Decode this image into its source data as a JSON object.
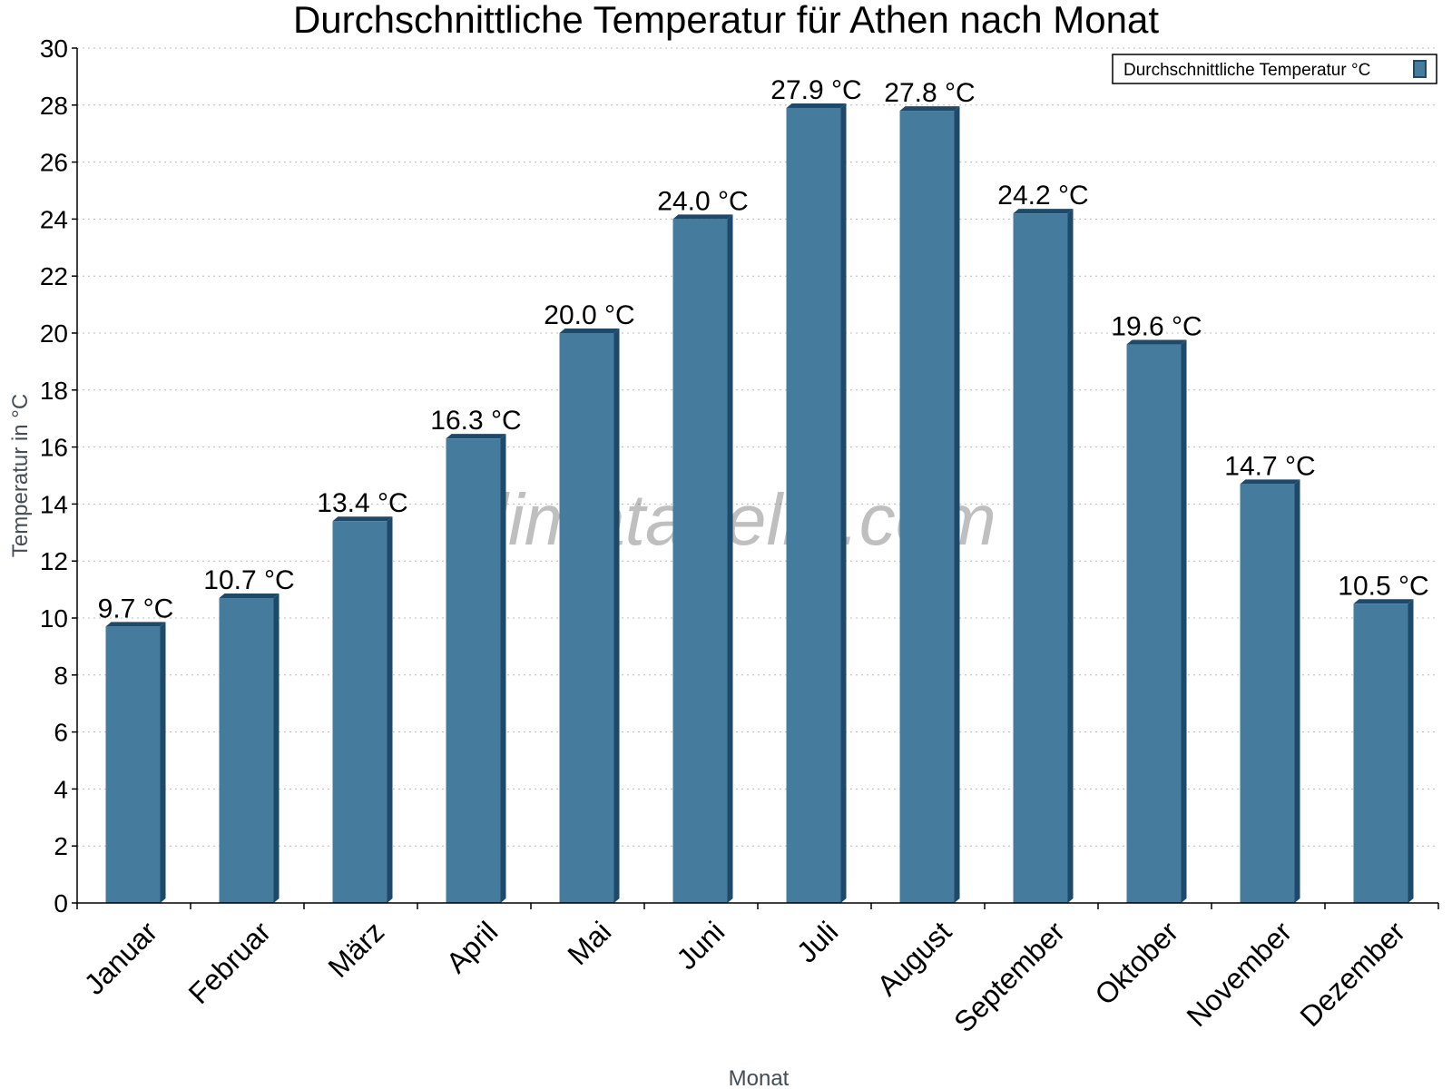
{
  "chart_data": {
    "type": "bar",
    "title": "Durchschnittliche Temperatur für Athen nach Monat",
    "xlabel": "Monat",
    "ylabel": "Temperatur in °C",
    "ylim": [
      0,
      30
    ],
    "yticks": [
      0,
      2,
      4,
      6,
      8,
      10,
      12,
      14,
      16,
      18,
      20,
      22,
      24,
      26,
      28,
      30
    ],
    "grid": true,
    "legend_position": "top-right",
    "categories": [
      "Januar",
      "Februar",
      "März",
      "April",
      "Mai",
      "Juni",
      "Juli",
      "August",
      "September",
      "Oktober",
      "November",
      "Dezember"
    ],
    "series": [
      {
        "name": "Durchschnittliche Temperatur °C",
        "values": [
          9.7,
          10.7,
          13.4,
          16.3,
          20.0,
          24.0,
          27.9,
          27.8,
          24.2,
          19.6,
          14.7,
          10.5
        ],
        "color": "#457b9d",
        "edge_color": "#1d4a6b"
      }
    ],
    "data_labels": [
      "9.7 °C",
      "10.7 °C",
      "13.4 °C",
      "16.3 °C",
      "20.0 °C",
      "24.0 °C",
      "27.9 °C",
      "27.8 °C",
      "24.2 °C",
      "19.6 °C",
      "14.7 °C",
      "10.5 °C"
    ],
    "watermark": "klimatabelle.com"
  }
}
